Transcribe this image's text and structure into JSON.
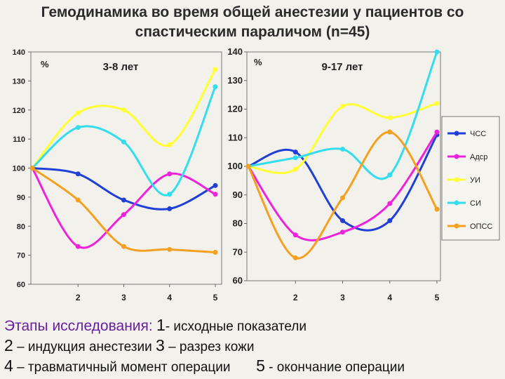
{
  "title_line1": "Гемодинамика во время общей анестезии у пациентов со",
  "title_line2": "спастическим параличом (n=45)",
  "captions": {
    "heading": "Этапы исследования:",
    "n1": "1",
    "t1": "- исходные показатели",
    "n2": "2",
    "t2": "– индукция анестезии",
    "n3": "3",
    "t3": "– разрез кожи",
    "n4": "4",
    "t4": "– травматичный момент операции",
    "n5": "5",
    "t5": "- окончание операции"
  },
  "colors": {
    "ЧСС": "#1f3fd6",
    "Адср": "#ee22dd",
    "УИ": "#ffff33",
    "СИ": "#33ddee",
    "ОПСС": "#f5a01f"
  },
  "chart_data": [
    {
      "type": "line",
      "title": "3-8 лет",
      "ylabel": "%",
      "x": [
        1,
        2,
        3,
        4,
        5
      ],
      "ylim": [
        60,
        140
      ],
      "yticks": [
        "60",
        "70",
        "80",
        "90",
        "100",
        "110",
        "120",
        "130",
        "140"
      ],
      "xticks": [
        "2",
        "3",
        "4",
        "5"
      ],
      "series": [
        {
          "name": "ЧСС",
          "values": [
            100,
            98,
            89,
            86,
            94
          ]
        },
        {
          "name": "Адср",
          "values": [
            100,
            73,
            84,
            98,
            91
          ]
        },
        {
          "name": "УИ",
          "values": [
            100,
            119,
            120,
            108,
            134
          ]
        },
        {
          "name": "СИ",
          "values": [
            100,
            114,
            109,
            91,
            128
          ]
        },
        {
          "name": "ОПСС",
          "values": [
            100,
            89,
            73,
            72,
            71
          ]
        }
      ]
    },
    {
      "type": "line",
      "title": "9-17 лет",
      "ylabel": "%",
      "x": [
        1,
        2,
        3,
        4,
        5
      ],
      "ylim": [
        60,
        140
      ],
      "yticks": [
        "60",
        "70",
        "80",
        "90",
        "100",
        "110",
        "120",
        "130",
        "140"
      ],
      "xticks": [
        "2",
        "3",
        "4",
        "5"
      ],
      "series": [
        {
          "name": "ЧСС",
          "values": [
            100,
            105,
            81,
            81,
            111
          ]
        },
        {
          "name": "Адср",
          "values": [
            100,
            76,
            77,
            87,
            112
          ]
        },
        {
          "name": "УИ",
          "values": [
            100,
            99,
            121,
            117,
            122
          ]
        },
        {
          "name": "СИ",
          "values": [
            100,
            103,
            106,
            97,
            140
          ]
        },
        {
          "name": "ОПСС",
          "values": [
            100,
            68,
            89,
            112,
            85
          ]
        }
      ],
      "legend": [
        "ЧСС",
        "Адср",
        "УИ",
        "СИ",
        "ОПСС"
      ]
    }
  ]
}
